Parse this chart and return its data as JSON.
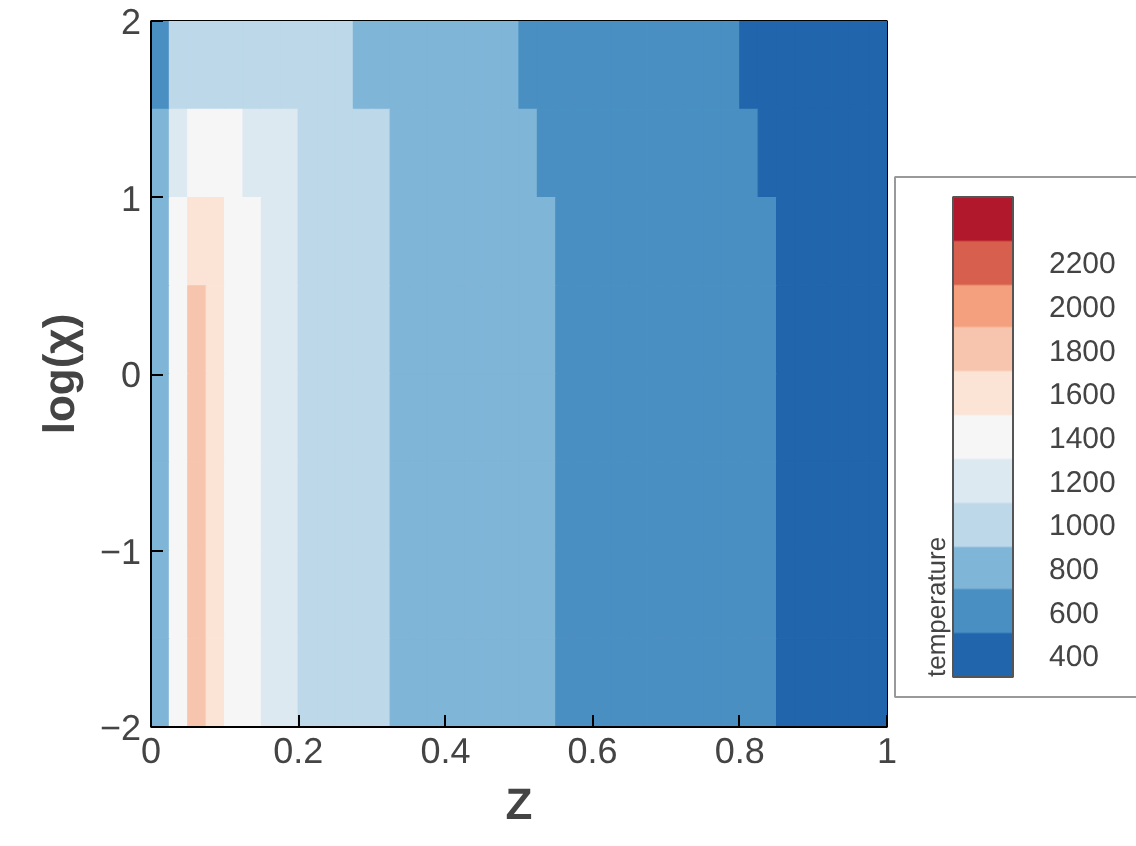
{
  "chart_data": {
    "type": "heatmap",
    "xlabel": "Z",
    "ylabel": "log(χ)",
    "clabel": "temperature",
    "xlim": [
      0,
      1
    ],
    "ylim": [
      -2,
      2
    ],
    "xticks": [
      0,
      0.2,
      0.4,
      0.6,
      0.8,
      1
    ],
    "yticks": [
      -2,
      -1,
      0,
      1,
      2
    ],
    "x": [
      0.0125,
      0.0375,
      0.0625,
      0.0875,
      0.1125,
      0.1375,
      0.1625,
      0.1875,
      0.2125,
      0.2375,
      0.2625,
      0.2875,
      0.3125,
      0.3375,
      0.3625,
      0.3875,
      0.4125,
      0.4375,
      0.4625,
      0.4875,
      0.5125,
      0.5375,
      0.5625,
      0.5875,
      0.6125,
      0.6375,
      0.6625,
      0.6875,
      0.7125,
      0.7375,
      0.7625,
      0.7875,
      0.8125,
      0.8375,
      0.8625,
      0.8875,
      0.9125,
      0.9375,
      0.9625,
      0.9875
    ],
    "y": [
      1.75,
      1.25,
      0.75,
      0.25,
      -0.25,
      -0.75,
      -1.25,
      -1.75
    ],
    "clim": [
      300,
      2500
    ],
    "cticks": [
      400,
      600,
      800,
      1000,
      1200,
      1400,
      1600,
      1800,
      2000,
      2200
    ],
    "colors": [
      "#2166ac",
      "#4a8fc2",
      "#7fb5d7",
      "#bcd8e9",
      "#dde9f1",
      "#f6f6f6",
      "#fbe3d6",
      "#f7c5ad",
      "#f4a07e",
      "#d6604d",
      "#b2182b"
    ],
    "cells": [
      [
        600,
        1000,
        1000,
        1000,
        1000,
        1000,
        1000,
        1000,
        1000,
        1000,
        1000,
        800,
        800,
        800,
        800,
        800,
        800,
        800,
        800,
        800,
        600,
        600,
        600,
        600,
        600,
        600,
        600,
        600,
        600,
        600,
        600,
        600,
        400,
        400,
        400,
        400,
        400,
        400,
        400,
        400
      ],
      [
        800,
        1200,
        1400,
        1400,
        1400,
        1200,
        1200,
        1200,
        1000,
        1000,
        1000,
        1000,
        1000,
        800,
        800,
        800,
        800,
        800,
        800,
        800,
        800,
        600,
        600,
        600,
        600,
        600,
        600,
        600,
        600,
        600,
        600,
        600,
        600,
        400,
        400,
        400,
        400,
        400,
        400,
        400
      ],
      [
        800,
        1400,
        1600,
        1600,
        1400,
        1400,
        1200,
        1200,
        1000,
        1000,
        1000,
        1000,
        1000,
        800,
        800,
        800,
        800,
        800,
        800,
        800,
        800,
        800,
        600,
        600,
        600,
        600,
        600,
        600,
        600,
        600,
        600,
        600,
        600,
        600,
        400,
        400,
        400,
        400,
        400,
        400
      ],
      [
        800,
        1400,
        1800,
        1600,
        1400,
        1400,
        1200,
        1200,
        1000,
        1000,
        1000,
        1000,
        1000,
        800,
        800,
        800,
        800,
        800,
        800,
        800,
        800,
        800,
        600,
        600,
        600,
        600,
        600,
        600,
        600,
        600,
        600,
        600,
        600,
        600,
        400,
        400,
        400,
        400,
        400,
        400
      ],
      [
        800,
        1400,
        1800,
        1600,
        1400,
        1400,
        1200,
        1200,
        1000,
        1000,
        1000,
        1000,
        1000,
        800,
        800,
        800,
        800,
        800,
        800,
        800,
        800,
        800,
        600,
        600,
        600,
        600,
        600,
        600,
        600,
        600,
        600,
        600,
        600,
        600,
        400,
        400,
        400,
        400,
        400,
        400
      ],
      [
        800,
        1400,
        1800,
        1600,
        1400,
        1400,
        1200,
        1200,
        1000,
        1000,
        1000,
        1000,
        1000,
        800,
        800,
        800,
        800,
        800,
        800,
        800,
        800,
        800,
        600,
        600,
        600,
        600,
        600,
        600,
        600,
        600,
        600,
        600,
        600,
        600,
        400,
        400,
        400,
        400,
        400,
        400
      ],
      [
        800,
        1400,
        1800,
        1600,
        1400,
        1400,
        1200,
        1200,
        1000,
        1000,
        1000,
        1000,
        1000,
        800,
        800,
        800,
        800,
        800,
        800,
        800,
        800,
        800,
        600,
        600,
        600,
        600,
        600,
        600,
        600,
        600,
        600,
        600,
        600,
        600,
        400,
        400,
        400,
        400,
        400,
        400
      ],
      [
        800,
        1400,
        1800,
        1600,
        1400,
        1400,
        1200,
        1200,
        1000,
        1000,
        1000,
        1000,
        1000,
        800,
        800,
        800,
        800,
        800,
        800,
        800,
        800,
        800,
        600,
        600,
        600,
        600,
        600,
        600,
        600,
        600,
        600,
        600,
        600,
        600,
        400,
        400,
        400,
        400,
        400,
        400
      ]
    ]
  }
}
